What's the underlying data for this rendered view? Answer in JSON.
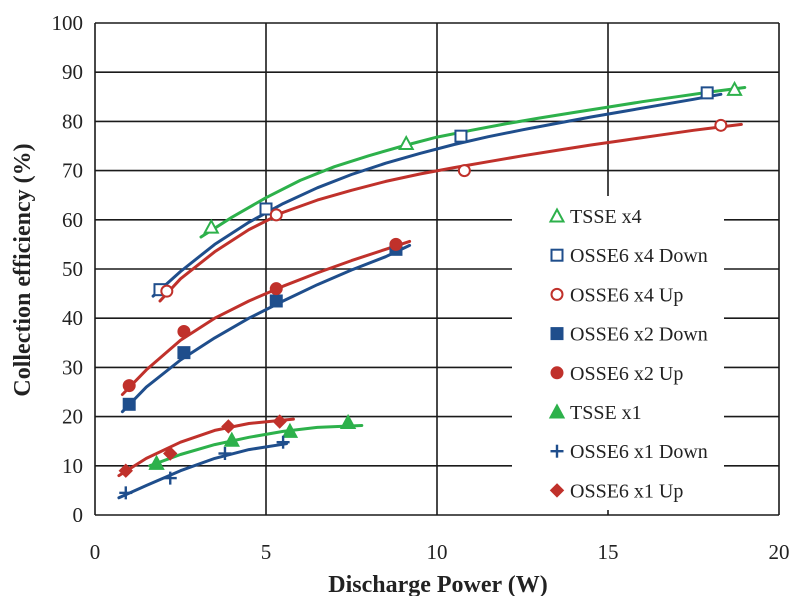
{
  "chart_data": {
    "type": "scatter",
    "title": "",
    "xlabel": "Discharge Power (W)",
    "ylabel": "Collection efficiency (%)",
    "xlim": [
      0,
      20
    ],
    "ylim": [
      0,
      100
    ],
    "xticks": [
      0,
      5,
      10,
      15,
      20
    ],
    "yticks": [
      0,
      10,
      20,
      30,
      40,
      50,
      60,
      70,
      80,
      90,
      100
    ],
    "grid": true,
    "legend_position": "right",
    "series": [
      {
        "name": "TSSE x4",
        "color": "#2db14b",
        "marker": "triangle-open",
        "points": [
          [
            3.4,
            58.5
          ],
          [
            9.1,
            75.5
          ],
          [
            18.7,
            86.5
          ]
        ],
        "trend": [
          [
            3.1,
            56.5
          ],
          [
            4.0,
            60.5
          ],
          [
            5.0,
            64.5
          ],
          [
            6.0,
            68.0
          ],
          [
            7.0,
            70.8
          ],
          [
            8.0,
            73.0
          ],
          [
            9.0,
            75.0
          ],
          [
            10.0,
            76.8
          ],
          [
            11.0,
            78.2
          ],
          [
            12.0,
            79.5
          ],
          [
            13.0,
            80.7
          ],
          [
            14.0,
            81.8
          ],
          [
            15.0,
            82.9
          ],
          [
            16.0,
            84.0
          ],
          [
            17.0,
            85.0
          ],
          [
            18.0,
            86.0
          ],
          [
            19.0,
            86.9
          ]
        ]
      },
      {
        "name": "OSSE6 x4 Down",
        "color": "#1f4e8c",
        "marker": "square-open",
        "points": [
          [
            1.9,
            45.8
          ],
          [
            5.0,
            62.2
          ],
          [
            10.7,
            77.0
          ],
          [
            17.9,
            85.8
          ]
        ],
        "trend": [
          [
            1.7,
            44.5
          ],
          [
            2.5,
            49.5
          ],
          [
            3.5,
            55.0
          ],
          [
            4.5,
            59.5
          ],
          [
            5.5,
            63.3
          ],
          [
            6.5,
            66.5
          ],
          [
            7.5,
            69.2
          ],
          [
            8.5,
            71.5
          ],
          [
            9.5,
            73.5
          ],
          [
            10.5,
            75.3
          ],
          [
            11.5,
            76.9
          ],
          [
            12.5,
            78.3
          ],
          [
            13.5,
            79.6
          ],
          [
            14.5,
            80.9
          ],
          [
            15.5,
            82.1
          ],
          [
            16.5,
            83.3
          ],
          [
            17.5,
            84.5
          ],
          [
            18.3,
            85.5
          ]
        ]
      },
      {
        "name": "OSSE6 x4 Up",
        "color": "#c0312b",
        "marker": "circle-open",
        "points": [
          [
            2.1,
            45.5
          ],
          [
            5.3,
            61.0
          ],
          [
            10.8,
            70.0
          ],
          [
            18.3,
            79.2
          ]
        ],
        "trend": [
          [
            1.9,
            43.5
          ],
          [
            2.5,
            48.0
          ],
          [
            3.5,
            53.5
          ],
          [
            4.5,
            58.0
          ],
          [
            5.5,
            61.5
          ],
          [
            6.5,
            64.0
          ],
          [
            7.5,
            66.0
          ],
          [
            8.5,
            67.8
          ],
          [
            9.5,
            69.3
          ],
          [
            10.5,
            70.6
          ],
          [
            11.5,
            71.8
          ],
          [
            12.5,
            73.0
          ],
          [
            13.5,
            74.1
          ],
          [
            14.5,
            75.2
          ],
          [
            15.5,
            76.2
          ],
          [
            16.5,
            77.2
          ],
          [
            17.5,
            78.2
          ],
          [
            18.9,
            79.4
          ]
        ]
      },
      {
        "name": "OSSE6 x2 Down",
        "color": "#1f4e8c",
        "marker": "square-filled",
        "points": [
          [
            1.0,
            22.5
          ],
          [
            2.6,
            33.0
          ],
          [
            5.3,
            43.5
          ],
          [
            8.8,
            54.0
          ]
        ],
        "trend": [
          [
            0.8,
            21.0
          ],
          [
            1.5,
            26.0
          ],
          [
            2.5,
            31.5
          ],
          [
            3.5,
            36.0
          ],
          [
            4.5,
            40.0
          ],
          [
            5.5,
            43.5
          ],
          [
            6.5,
            46.8
          ],
          [
            7.5,
            49.8
          ],
          [
            8.5,
            52.5
          ],
          [
            9.2,
            54.8
          ]
        ]
      },
      {
        "name": "OSSE6 x2 Up",
        "color": "#c0312b",
        "marker": "circle-filled",
        "points": [
          [
            1.0,
            26.3
          ],
          [
            2.6,
            37.3
          ],
          [
            5.3,
            46.0
          ],
          [
            8.8,
            55.0
          ]
        ],
        "trend": [
          [
            0.8,
            24.5
          ],
          [
            1.5,
            29.5
          ],
          [
            2.5,
            35.5
          ],
          [
            3.5,
            40.0
          ],
          [
            4.5,
            43.5
          ],
          [
            5.5,
            46.5
          ],
          [
            6.5,
            49.2
          ],
          [
            7.5,
            51.7
          ],
          [
            8.5,
            54.0
          ],
          [
            9.2,
            55.6
          ]
        ]
      },
      {
        "name": "TSSE x1",
        "color": "#2db14b",
        "marker": "triangle-filled",
        "points": [
          [
            1.8,
            10.5
          ],
          [
            4.0,
            15.2
          ],
          [
            5.7,
            17.0
          ],
          [
            7.4,
            18.8
          ]
        ],
        "trend": [
          [
            1.6,
            10.0
          ],
          [
            2.5,
            12.3
          ],
          [
            3.5,
            14.3
          ],
          [
            4.5,
            15.8
          ],
          [
            5.5,
            17.0
          ],
          [
            6.5,
            17.8
          ],
          [
            7.8,
            18.2
          ]
        ]
      },
      {
        "name": "OSSE6 x1 Down",
        "color": "#1f4e8c",
        "marker": "plus",
        "points": [
          [
            0.9,
            4.5
          ],
          [
            2.2,
            7.5
          ],
          [
            3.8,
            12.5
          ],
          [
            5.5,
            14.8
          ]
        ],
        "trend": [
          [
            0.7,
            3.5
          ],
          [
            1.5,
            6.0
          ],
          [
            2.5,
            9.0
          ],
          [
            3.5,
            11.5
          ],
          [
            4.5,
            13.3
          ],
          [
            5.6,
            14.5
          ]
        ]
      },
      {
        "name": "OSSE6 x1 Up",
        "color": "#c0312b",
        "marker": "diamond-filled",
        "points": [
          [
            0.9,
            9.0
          ],
          [
            2.2,
            12.5
          ],
          [
            3.9,
            18.0
          ],
          [
            5.4,
            19.0
          ]
        ],
        "trend": [
          [
            0.7,
            8.0
          ],
          [
            1.5,
            11.5
          ],
          [
            2.5,
            14.8
          ],
          [
            3.5,
            17.2
          ],
          [
            4.5,
            18.6
          ],
          [
            5.8,
            19.5
          ]
        ]
      }
    ]
  }
}
